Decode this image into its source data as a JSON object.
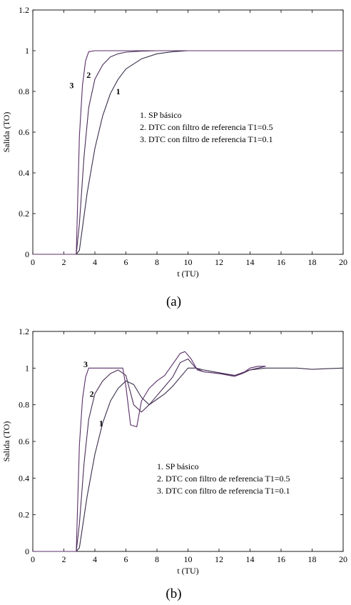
{
  "chart_data": [
    {
      "type": "line",
      "caption": "(a)",
      "xlabel": "t (TU)",
      "ylabel": "Salida (TO)",
      "xlim": [
        0,
        20
      ],
      "ylim": [
        0,
        1.2
      ],
      "xticks": [
        0,
        2,
        4,
        6,
        8,
        10,
        12,
        14,
        16,
        18,
        20
      ],
      "yticks": [
        0,
        0.2,
        0.4,
        0.6,
        0.8,
        1,
        1.2
      ],
      "grid": false,
      "legend_position": "right-middle",
      "legend": [
        "1. SP básico",
        "2. DTC con filtro de referencia T1=0.5",
        "3. DTC con filtro de referencia T1=0.1"
      ],
      "series": [
        {
          "label": "1",
          "label_at": [
            5.5,
            0.8
          ],
          "x": [
            0,
            2.8,
            3.0,
            3.5,
            4.0,
            4.5,
            5.0,
            5.5,
            6.0,
            7.0,
            8.0,
            9.0,
            10.0,
            12.0,
            20.0
          ],
          "y": [
            0,
            0,
            0.02,
            0.3,
            0.52,
            0.68,
            0.79,
            0.86,
            0.91,
            0.96,
            0.985,
            0.995,
            1.0,
            1.0,
            1.0
          ]
        },
        {
          "label": "2",
          "label_at": [
            3.6,
            0.88
          ],
          "x": [
            0,
            2.8,
            3.0,
            3.3,
            3.6,
            4.0,
            4.5,
            5.0,
            5.5,
            6.0,
            7.0,
            8.0,
            20.0
          ],
          "y": [
            0,
            0,
            0.15,
            0.48,
            0.72,
            0.86,
            0.93,
            0.97,
            0.985,
            0.993,
            0.998,
            1.0,
            1.0
          ]
        },
        {
          "label": "3",
          "label_at": [
            2.5,
            0.83
          ],
          "x": [
            0,
            2.8,
            3.0,
            3.2,
            3.4,
            3.6,
            4.0,
            5.0,
            20.0
          ],
          "y": [
            0,
            0,
            0.58,
            0.83,
            0.95,
            0.995,
            1.0,
            1.0,
            1.0
          ]
        }
      ]
    },
    {
      "type": "line",
      "caption": "(b)",
      "xlabel": "t (TU)",
      "ylabel": "Salida (TO)",
      "xlim": [
        0,
        20
      ],
      "ylim": [
        0,
        1.2
      ],
      "xticks": [
        0,
        2,
        4,
        6,
        8,
        10,
        12,
        14,
        16,
        18,
        20
      ],
      "yticks": [
        0,
        0.2,
        0.4,
        0.6,
        0.8,
        1,
        1.2
      ],
      "grid": false,
      "legend_position": "right-middle",
      "legend": [
        "1. SP básico",
        "2. DTC con filtro de referencia T1=0.5",
        "3. DTC con filtro de referencia T1=0.1"
      ],
      "series": [
        {
          "label": "1",
          "label_at": [
            4.4,
            0.7
          ],
          "x": [
            0,
            2.8,
            3.0,
            3.5,
            4.0,
            4.5,
            5.0,
            5.5,
            6.0,
            6.5,
            7.0,
            7.5,
            8.0,
            8.5,
            9.0,
            9.5,
            10.0,
            10.5,
            11.0,
            12.0,
            13.0,
            13.5,
            14.0,
            15.0,
            16.0,
            17.0,
            18.0,
            19.0,
            20.0
          ],
          "y": [
            0,
            0,
            0.02,
            0.3,
            0.53,
            0.7,
            0.82,
            0.89,
            0.93,
            0.91,
            0.84,
            0.8,
            0.83,
            0.86,
            0.9,
            0.95,
            1.0,
            1.0,
            0.99,
            0.975,
            0.96,
            0.97,
            0.99,
            1.0,
            1.0,
            1.0,
            0.993,
            0.997,
            1.0
          ]
        },
        {
          "label": "2",
          "label_at": [
            3.8,
            0.86
          ],
          "x": [
            0,
            2.8,
            3.0,
            3.3,
            3.6,
            4.0,
            4.5,
            5.0,
            5.5,
            6.0,
            6.5,
            7.0,
            7.5,
            8.0,
            8.5,
            9.0,
            9.5,
            10.0,
            10.5,
            11.0,
            12.0,
            13.0,
            14.0,
            15.0
          ],
          "y": [
            0,
            0,
            0.15,
            0.48,
            0.72,
            0.86,
            0.93,
            0.97,
            0.99,
            0.96,
            0.8,
            0.76,
            0.8,
            0.85,
            0.9,
            0.95,
            1.03,
            1.05,
            1.0,
            0.98,
            0.97,
            0.96,
            0.99,
            1.01
          ]
        },
        {
          "label": "3",
          "label_at": [
            3.4,
            1.02
          ],
          "x": [
            0,
            2.8,
            3.0,
            3.2,
            3.4,
            3.6,
            4.0,
            5.0,
            5.8,
            6.0,
            6.3,
            6.7,
            7.0,
            7.5,
            8.0,
            8.5,
            9.0,
            9.5,
            9.8,
            10.2,
            10.6,
            11.0,
            12.0,
            13.0,
            13.5,
            14.0,
            14.5,
            15.0
          ],
          "y": [
            0,
            0,
            0.58,
            0.83,
            0.95,
            1.0,
            1.0,
            1.0,
            1.0,
            0.9,
            0.69,
            0.68,
            0.82,
            0.89,
            0.93,
            0.96,
            1.02,
            1.08,
            1.09,
            1.05,
            0.99,
            0.98,
            0.97,
            0.955,
            0.97,
            1.0,
            1.01,
            1.01
          ]
        }
      ]
    }
  ]
}
